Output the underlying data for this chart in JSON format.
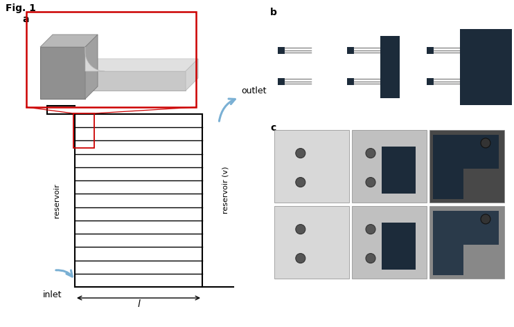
{
  "fig_label": "Fig. 1",
  "panel_a_label": "a",
  "panel_b_label": "b",
  "panel_c_label": "c",
  "bg_color": "#ffffff",
  "line_color": "#000000",
  "red_box_color": "#cc0000",
  "blue_arrow_color": "#7ab0d4",
  "dark_shape_color": "#1c2b3a",
  "channel_count": 12,
  "left_reservoir_label": "reservoir",
  "right_reservoir_label": "reservoir (v)",
  "inlet_label": "inlet",
  "outlet_label": "outlet",
  "length_label": "l"
}
